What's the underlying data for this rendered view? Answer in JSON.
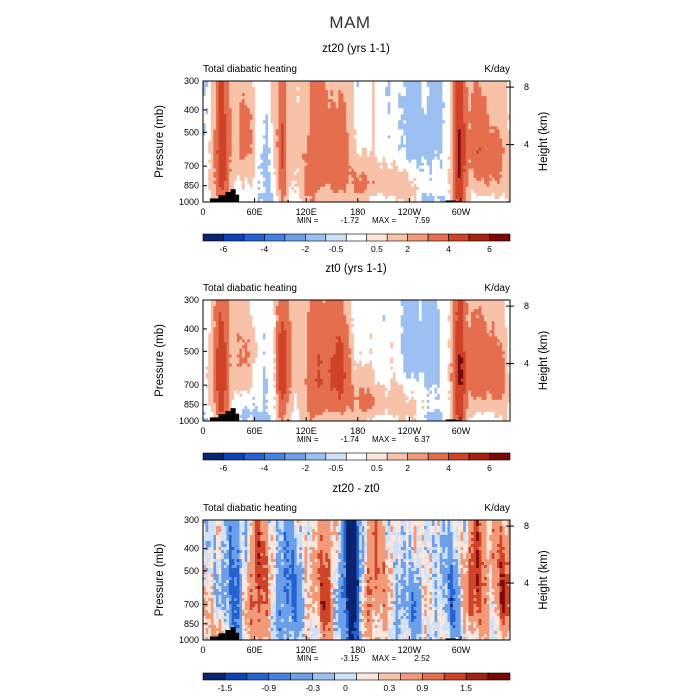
{
  "figure_title": "MAM",
  "chart_data": [
    {
      "type": "heatmap",
      "title": "zt20 (yrs 1-1)",
      "subtitle_left": "Total diabatic heating",
      "subtitle_right": "K/day",
      "xlabel": "",
      "ylabel": "Pressure  (mb)",
      "ylabel_right": "Height  (km)",
      "x_ticks": [
        "0",
        "60E",
        "120E",
        "180",
        "120W",
        "60W"
      ],
      "x_tick_lon": [
        0,
        60,
        120,
        180,
        240,
        300
      ],
      "x_range": [
        0,
        357
      ],
      "y_ticks": [
        "300",
        "400",
        "500",
        "700",
        "850",
        "1000"
      ],
      "y_tick_pressure": [
        300,
        400,
        500,
        700,
        850,
        1000
      ],
      "y_range": [
        1000,
        300
      ],
      "right_ticks": [
        "8",
        "4"
      ],
      "right_tick_km": [
        8,
        4
      ],
      "min_label": "MIN =",
      "min": "-1.72",
      "max_label": "MAX =",
      "max": "7.59",
      "colorbar_levels": [
        -6,
        -4,
        -2,
        -0.5,
        0.5,
        2,
        4,
        6
      ],
      "colorbar_labels": [
        "-6",
        "-4",
        "-2",
        "-0.5",
        "0.5",
        "2",
        "4",
        "6"
      ],
      "colorbar_colors": [
        "#0a2471",
        "#0f43b3",
        "#2562d1",
        "#4680e0",
        "#6b9fe9",
        "#9cc0f2",
        "#cfe1f8",
        "#ffffff",
        "#fde6da",
        "#f8c2a9",
        "#f29a78",
        "#e56e4e",
        "#cf4329",
        "#a8200e",
        "#7a0805"
      ],
      "mode": "heating"
    },
    {
      "type": "heatmap",
      "title": "zt0 (yrs 1-1)",
      "subtitle_left": "Total diabatic heating",
      "subtitle_right": "K/day",
      "xlabel": "",
      "ylabel": "Pressure  (mb)",
      "ylabel_right": "Height  (km)",
      "x_ticks": [
        "0",
        "60E",
        "120E",
        "180",
        "120W",
        "60W"
      ],
      "x_tick_lon": [
        0,
        60,
        120,
        180,
        240,
        300
      ],
      "x_range": [
        0,
        357
      ],
      "y_ticks": [
        "300",
        "400",
        "500",
        "700",
        "850",
        "1000"
      ],
      "y_tick_pressure": [
        300,
        400,
        500,
        700,
        850,
        1000
      ],
      "y_range": [
        1000,
        300
      ],
      "right_ticks": [
        "8",
        "4"
      ],
      "right_tick_km": [
        8,
        4
      ],
      "min_label": "MIN =",
      "min": "-1.74",
      "max_label": "MAX =",
      "max": "6.37",
      "colorbar_levels": [
        -6,
        -4,
        -2,
        -0.5,
        0.5,
        2,
        4,
        6
      ],
      "colorbar_labels": [
        "-6",
        "-4",
        "-2",
        "-0.5",
        "0.5",
        "2",
        "4",
        "6"
      ],
      "colorbar_colors": [
        "#0a2471",
        "#0f43b3",
        "#2562d1",
        "#4680e0",
        "#6b9fe9",
        "#9cc0f2",
        "#cfe1f8",
        "#ffffff",
        "#fde6da",
        "#f8c2a9",
        "#f29a78",
        "#e56e4e",
        "#cf4329",
        "#a8200e",
        "#7a0805"
      ],
      "mode": "heating2"
    },
    {
      "type": "heatmap",
      "title": "zt20 - zt0",
      "subtitle_left": "Total diabatic heating",
      "subtitle_right": "K/day",
      "xlabel": "",
      "ylabel": "Pressure  (mb)",
      "ylabel_right": "Height  (km)",
      "x_ticks": [
        "0",
        "60E",
        "120E",
        "180",
        "120W",
        "60W"
      ],
      "x_tick_lon": [
        0,
        60,
        120,
        180,
        240,
        300
      ],
      "x_range": [
        0,
        357
      ],
      "y_ticks": [
        "300",
        "400",
        "500",
        "700",
        "850",
        "1000"
      ],
      "y_tick_pressure": [
        300,
        400,
        500,
        700,
        850,
        1000
      ],
      "y_range": [
        1000,
        300
      ],
      "right_ticks": [
        "8",
        "4"
      ],
      "right_tick_km": [
        8,
        4
      ],
      "min_label": "MIN =",
      "min": "-3.15",
      "max_label": "MAX =",
      "max": "2.52",
      "colorbar_levels": [
        -1.5,
        -0.9,
        -0.3,
        0,
        0.3,
        0.9,
        1.5
      ],
      "colorbar_labels": [
        "-1.5",
        "-0.9",
        "-0.3",
        "0",
        "0.3",
        "0.9",
        "1.5"
      ],
      "colorbar_colors": [
        "#0a2471",
        "#0f43b3",
        "#2562d1",
        "#4680e0",
        "#6b9fe9",
        "#9cc0f2",
        "#cfe1f8",
        "#fde6da",
        "#f8c2a9",
        "#f29a78",
        "#e56e4e",
        "#cf4329",
        "#a8200e",
        "#7a0805"
      ],
      "mode": "diff"
    }
  ]
}
